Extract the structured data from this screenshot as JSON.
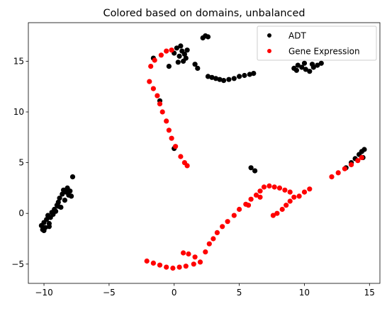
{
  "chart_data": {
    "type": "scatter",
    "title": "Colored based on domains, unbalanced",
    "xlabel": "",
    "ylabel": "",
    "xlim": [
      -11.2,
      15.8
    ],
    "ylim": [
      -6.9,
      18.8
    ],
    "xticks": [
      -10,
      -5,
      0,
      5,
      10,
      15
    ],
    "yticks": [
      -5,
      0,
      5,
      10,
      15
    ],
    "grid": false,
    "legend_position": "top-right",
    "series": [
      {
        "name": "ADT",
        "color": "#000000",
        "points": [
          [
            -10.1,
            -1.6
          ],
          [
            -10.2,
            -1.2
          ],
          [
            -10.0,
            -0.9
          ],
          [
            -9.9,
            -1.4
          ],
          [
            -9.8,
            -0.6
          ],
          [
            -9.6,
            -1.0
          ],
          [
            -9.5,
            -0.4
          ],
          [
            -9.7,
            -0.2
          ],
          [
            -9.4,
            0.1
          ],
          [
            -9.2,
            0.4
          ],
          [
            -9.3,
            -0.1
          ],
          [
            -9.0,
            0.8
          ],
          [
            -8.9,
            1.1
          ],
          [
            -8.8,
            1.5
          ],
          [
            -8.7,
            0.6
          ],
          [
            -8.6,
            1.9
          ],
          [
            -8.5,
            2.3
          ],
          [
            -8.4,
            1.3
          ],
          [
            -8.3,
            2.1
          ],
          [
            -8.1,
            1.8
          ],
          [
            -8.0,
            2.2
          ],
          [
            -7.9,
            1.7
          ],
          [
            -8.2,
            2.5
          ],
          [
            -7.8,
            3.6
          ],
          [
            -9.1,
            0.2
          ],
          [
            -8.9,
            0.7
          ],
          [
            -9.6,
            -1.3
          ],
          [
            -10.0,
            -1.7
          ],
          [
            -1.6,
            15.3
          ],
          [
            -1.1,
            11.1
          ],
          [
            -0.4,
            14.5
          ],
          [
            0.0,
            6.4
          ],
          [
            0.0,
            15.8
          ],
          [
            0.2,
            16.3
          ],
          [
            0.4,
            15.5
          ],
          [
            0.6,
            16.0
          ],
          [
            0.8,
            15.7
          ],
          [
            0.3,
            14.9
          ],
          [
            0.7,
            15.0
          ],
          [
            0.9,
            15.3
          ],
          [
            1.0,
            16.1
          ],
          [
            0.5,
            16.5
          ],
          [
            1.6,
            14.7
          ],
          [
            1.8,
            14.3
          ],
          [
            2.2,
            17.3
          ],
          [
            2.4,
            17.5
          ],
          [
            2.6,
            17.4
          ],
          [
            2.6,
            13.5
          ],
          [
            2.9,
            13.4
          ],
          [
            3.2,
            13.3
          ],
          [
            3.5,
            13.2
          ],
          [
            3.8,
            13.1
          ],
          [
            4.2,
            13.2
          ],
          [
            4.6,
            13.3
          ],
          [
            5.0,
            13.5
          ],
          [
            5.4,
            13.6
          ],
          [
            5.8,
            13.7
          ],
          [
            6.1,
            13.8
          ],
          [
            5.9,
            4.5
          ],
          [
            6.2,
            4.2
          ],
          [
            9.2,
            14.3
          ],
          [
            9.5,
            14.6
          ],
          [
            9.8,
            14.4
          ],
          [
            10.1,
            14.2
          ],
          [
            10.4,
            14.0
          ],
          [
            10.7,
            14.4
          ],
          [
            11.0,
            14.6
          ],
          [
            11.3,
            14.8
          ],
          [
            10.0,
            14.8
          ],
          [
            10.6,
            14.7
          ],
          [
            9.4,
            14.1
          ],
          [
            13.2,
            4.5
          ],
          [
            13.6,
            5.0
          ],
          [
            13.9,
            5.4
          ],
          [
            14.2,
            5.8
          ],
          [
            14.4,
            6.1
          ],
          [
            14.6,
            6.3
          ],
          [
            14.5,
            5.5
          ]
        ]
      },
      {
        "name": "Gene Expression",
        "color": "#ff0000",
        "points": [
          [
            -1.8,
            14.5
          ],
          [
            -1.5,
            15.1
          ],
          [
            -1.0,
            15.6
          ],
          [
            -0.6,
            16.0
          ],
          [
            -0.2,
            16.1
          ],
          [
            -1.9,
            13.0
          ],
          [
            -1.6,
            12.3
          ],
          [
            -1.3,
            11.6
          ],
          [
            -1.1,
            10.8
          ],
          [
            -0.9,
            10.0
          ],
          [
            -0.6,
            9.1
          ],
          [
            -0.4,
            8.2
          ],
          [
            -0.2,
            7.4
          ],
          [
            0.1,
            6.6
          ],
          [
            0.5,
            5.6
          ],
          [
            0.8,
            5.0
          ],
          [
            1.0,
            4.7
          ],
          [
            -2.1,
            -4.7
          ],
          [
            -1.6,
            -4.9
          ],
          [
            -1.1,
            -5.1
          ],
          [
            -0.6,
            -5.3
          ],
          [
            -0.1,
            -5.4
          ],
          [
            0.4,
            -5.3
          ],
          [
            0.9,
            -5.2
          ],
          [
            1.5,
            -5.0
          ],
          [
            2.0,
            -4.8
          ],
          [
            1.6,
            -4.3
          ],
          [
            1.1,
            -4.0
          ],
          [
            0.7,
            -3.9
          ],
          [
            2.4,
            -3.8
          ],
          [
            2.7,
            -3.0
          ],
          [
            3.0,
            -2.5
          ],
          [
            3.3,
            -1.9
          ],
          [
            3.7,
            -1.3
          ],
          [
            4.1,
            -0.8
          ],
          [
            4.6,
            -0.2
          ],
          [
            5.0,
            0.4
          ],
          [
            5.5,
            0.9
          ],
          [
            5.9,
            1.4
          ],
          [
            6.3,
            1.8
          ],
          [
            6.6,
            2.2
          ],
          [
            6.9,
            2.6
          ],
          [
            7.3,
            2.7
          ],
          [
            7.7,
            2.6
          ],
          [
            8.1,
            2.5
          ],
          [
            8.5,
            2.3
          ],
          [
            8.9,
            2.1
          ],
          [
            9.2,
            1.6
          ],
          [
            8.9,
            1.2
          ],
          [
            8.6,
            0.8
          ],
          [
            8.3,
            0.4
          ],
          [
            7.9,
            0.0
          ],
          [
            7.6,
            -0.2
          ],
          [
            9.6,
            1.7
          ],
          [
            10.0,
            2.1
          ],
          [
            10.4,
            2.4
          ],
          [
            5.7,
            0.8
          ],
          [
            6.6,
            1.6
          ],
          [
            12.1,
            3.6
          ],
          [
            12.6,
            4.0
          ],
          [
            13.1,
            4.4
          ],
          [
            13.6,
            4.8
          ],
          [
            14.1,
            5.2
          ],
          [
            14.4,
            5.5
          ]
        ]
      }
    ]
  }
}
